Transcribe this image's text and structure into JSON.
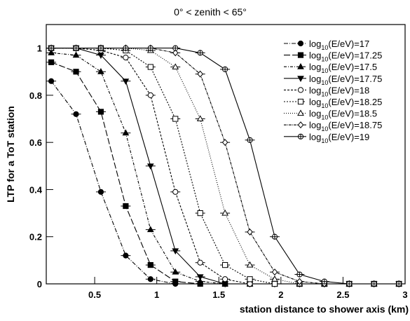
{
  "chart_data": {
    "type": "line",
    "title": "0° < zenith < 65°",
    "x_label": "station distance to shower axis (km)",
    "y_label": "LTP for a ToT station",
    "x": [
      0.15,
      0.35,
      0.55,
      0.75,
      0.95,
      1.15,
      1.35,
      1.55,
      1.75,
      1.95,
      2.15,
      2.35,
      2.55,
      2.75,
      2.95
    ],
    "xlim": [
      0.11,
      3
    ],
    "xticks": [
      0.5,
      1,
      1.5,
      2,
      2.5,
      3
    ],
    "ylim": [
      0,
      1.1
    ],
    "yticks": [
      0,
      0.2,
      0.4,
      0.6,
      0.8,
      1
    ],
    "grid": false,
    "legend": "upper right",
    "series": [
      {
        "name": "log10(E/eV)=17",
        "color": "#000000",
        "marker": "filled-circle",
        "dash": "6 2 1 2",
        "values": [
          0.86,
          0.72,
          0.39,
          0.12,
          0.02,
          0,
          0,
          0,
          0,
          0,
          0,
          0,
          0,
          0,
          0
        ]
      },
      {
        "name": "log10(E/eV)=17.25",
        "color": "#000000",
        "marker": "filled-square",
        "dash": "9 3",
        "values": [
          0.94,
          0.9,
          0.73,
          0.33,
          0.08,
          0.01,
          0,
          0,
          0,
          0,
          0,
          0,
          0,
          0,
          0
        ]
      },
      {
        "name": "log10(E/eV)=17.5",
        "color": "#000000",
        "marker": "filled-triangle-up",
        "dash": "4 2 1 2",
        "values": [
          0.98,
          0.97,
          0.9,
          0.64,
          0.23,
          0.05,
          0.01,
          0,
          0,
          0,
          0,
          0,
          0,
          0,
          0
        ]
      },
      {
        "name": "log10(E/eV)=17.75",
        "color": "#000000",
        "marker": "filled-triangle-down",
        "dash": "none",
        "values": [
          1,
          1,
          0.97,
          0.86,
          0.5,
          0.14,
          0.03,
          0,
          0,
          0,
          0,
          0,
          0,
          0,
          0
        ]
      },
      {
        "name": "log10(E/eV)=18",
        "color": "#000000",
        "marker": "open-circle",
        "dash": "3 2",
        "values": [
          1,
          1,
          0.99,
          0.96,
          0.8,
          0.39,
          0.09,
          0.02,
          0,
          0,
          0,
          0,
          0,
          0,
          0
        ]
      },
      {
        "name": "log10(E/eV)=18.25",
        "color": "#000000",
        "marker": "open-square",
        "dash": "2 2",
        "values": [
          1,
          1,
          1,
          0.99,
          0.92,
          0.7,
          0.3,
          0.08,
          0.02,
          0,
          0,
          0,
          0,
          0,
          0
        ]
      },
      {
        "name": "log10(E/eV)=18.5",
        "color": "#000000",
        "marker": "open-triangle-up",
        "dash": "1 2",
        "values": [
          1,
          1,
          1,
          1,
          0.99,
          0.92,
          0.7,
          0.3,
          0.08,
          0.02,
          0,
          0,
          0,
          0,
          0
        ]
      },
      {
        "name": "log10(E/eV)=18.75",
        "color": "#000000",
        "marker": "open-diamond",
        "dash": "4 1 1 1",
        "values": [
          1,
          1,
          1,
          1,
          1,
          0.98,
          0.89,
          0.6,
          0.22,
          0.05,
          0.01,
          0,
          0,
          0,
          0
        ]
      },
      {
        "name": "log10(E/eV)=19",
        "color": "#000000",
        "marker": "cross-circle",
        "dash": "none",
        "values": [
          1,
          1,
          1,
          1,
          1,
          1,
          0.98,
          0.91,
          0.61,
          0.2,
          0.04,
          0.01,
          0,
          0,
          0
        ]
      }
    ]
  }
}
